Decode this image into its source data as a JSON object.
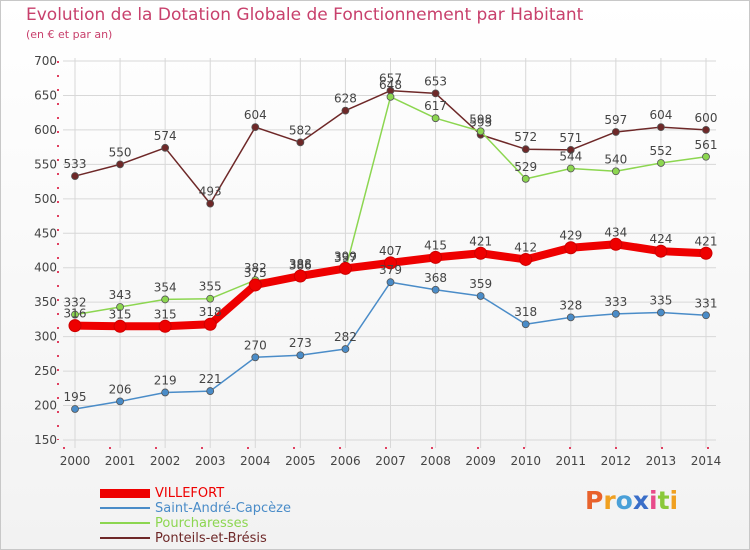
{
  "header": {
    "title": "Evolution de la Dotation Globale de Fonctionnement par Habitant",
    "subtitle": "(en € et par an)"
  },
  "logo": {
    "letters": [
      "P",
      "r",
      "o",
      "x",
      "i",
      "t",
      "i"
    ],
    "colors": [
      "#e8622c",
      "#f0a020",
      "#4aa0d8",
      "#3a6ec8",
      "#e84a8a",
      "#8ac83a",
      "#f0a020"
    ]
  },
  "legend": [
    {
      "label": "VILLEFORT",
      "color": "#ee0000"
    },
    {
      "label": "Saint-André-Capcèze",
      "color": "#4a8cc8"
    },
    {
      "label": "Pourcharesses",
      "color": "#8cd650"
    },
    {
      "label": "Ponteils-et-Brésis",
      "color": "#6e2828"
    }
  ],
  "chart_data": {
    "type": "line",
    "title": "Evolution de la Dotation Globale de Fonctionnement par Habitant",
    "subtitle": "(en € et par an)",
    "x": [
      "2000",
      "2001",
      "2002",
      "2003",
      "2004",
      "2005",
      "2006",
      "2007",
      "2008",
      "2009",
      "2010",
      "2011",
      "2012",
      "2013",
      "2014"
    ],
    "ylim": [
      150,
      700
    ],
    "yticks": [
      150,
      200,
      250,
      300,
      350,
      400,
      450,
      500,
      550,
      600,
      650,
      700
    ],
    "grid": true,
    "legend_position": "bottom-left",
    "series": [
      {
        "name": "VILLEFORT",
        "color": "#ee0000",
        "values": [
          316,
          315,
          315,
          318,
          375,
          388,
          399,
          407,
          415,
          421,
          412,
          429,
          434,
          424,
          421
        ]
      },
      {
        "name": "Saint-André-Capcèze",
        "color": "#4a8cc8",
        "values": [
          195,
          206,
          219,
          221,
          270,
          273,
          282,
          379,
          368,
          359,
          318,
          328,
          333,
          335,
          331
        ]
      },
      {
        "name": "Pourcharesses",
        "color": "#8cd650",
        "values": [
          332,
          343,
          354,
          355,
          382,
          386,
          397,
          648,
          617,
          598,
          529,
          544,
          540,
          552,
          561
        ]
      },
      {
        "name": "Ponteils-et-Brésis",
        "color": "#6e2828",
        "values": [
          533,
          550,
          574,
          493,
          604,
          582,
          628,
          657,
          653,
          593,
          572,
          571,
          597,
          604,
          600
        ]
      }
    ]
  }
}
